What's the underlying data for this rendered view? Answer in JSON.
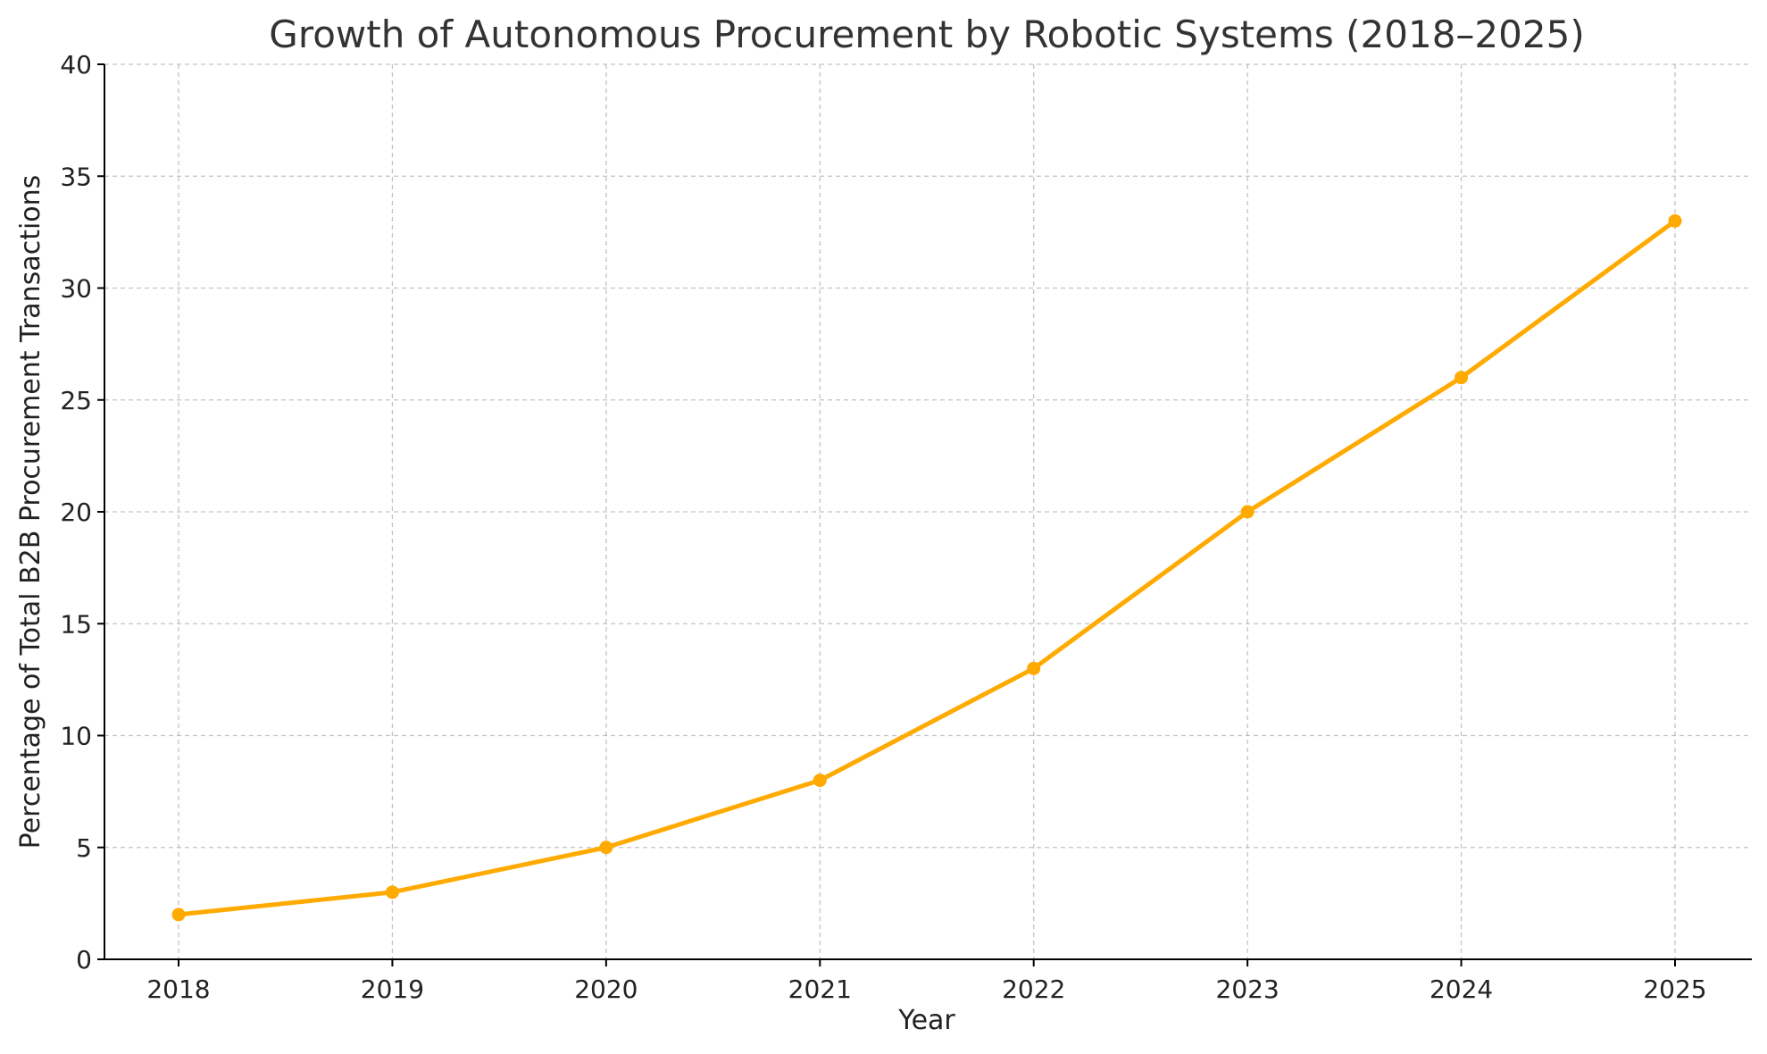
{
  "chart_data": {
    "type": "line",
    "title": "Growth of Autonomous Procurement by Robotic Systems (2018–2025)",
    "xlabel": "Year",
    "ylabel": "Percentage of Total B2B Procurement Transactions",
    "categories": [
      "2018",
      "2019",
      "2020",
      "2021",
      "2022",
      "2023",
      "2024",
      "2025"
    ],
    "series": [
      {
        "values": [
          2,
          3,
          5,
          8,
          13,
          20,
          26,
          33
        ],
        "color": "#FFAA00",
        "marker": "circle"
      }
    ],
    "ylim": [
      0,
      40
    ],
    "yticks": [
      0,
      5,
      10,
      15,
      20,
      25,
      30,
      35,
      40
    ],
    "grid": true,
    "grid_style": "dashed"
  }
}
